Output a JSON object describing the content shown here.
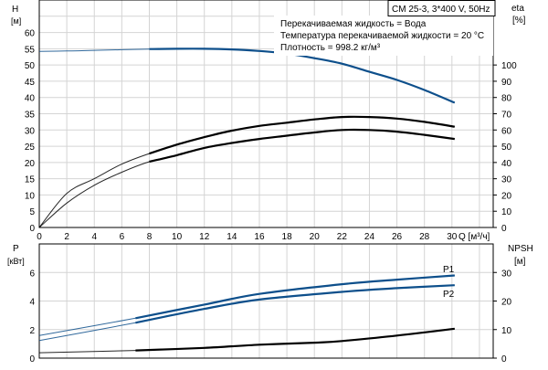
{
  "chart_data": [
    {
      "type": "line",
      "title_box": "CM 25-3, 3*400 V, 50Hz",
      "info_lines": [
        "Перекачиваемая жидкость = Вода",
        "Температура перекачиваемой жидкости = 20 °C",
        "Плотность = 998.2 кг/м³"
      ],
      "xlabel": "Q [м³/ч]",
      "ylabel_left": {
        "name": "H",
        "unit": "[м]"
      },
      "ylabel_right": {
        "name": "eta",
        "unit": "[%]"
      },
      "xlim": [
        0,
        33
      ],
      "ylim_left": [
        0,
        70
      ],
      "ylim_right": [
        0,
        140
      ],
      "x_ticks": [
        "0",
        "2",
        "4",
        "6",
        "8",
        "10",
        "12",
        "14",
        "16",
        "18",
        "20",
        "22",
        "24",
        "26",
        "28",
        "30"
      ],
      "y_ticks_left": [
        "0",
        "5",
        "10",
        "15",
        "20",
        "25",
        "30",
        "35",
        "40",
        "45",
        "50",
        "55",
        "60"
      ],
      "y_ticks_right": [
        "0",
        "10",
        "20",
        "30",
        "40",
        "50",
        "60",
        "70",
        "80",
        "90",
        "100"
      ],
      "grid": true,
      "operating_range_start_q": 7,
      "series": [
        {
          "axis": "left",
          "color": "#0d4f8b",
          "x": [
            0,
            2,
            4,
            6,
            8,
            10,
            12,
            14,
            16,
            18,
            20,
            22,
            24,
            26,
            28,
            30.2
          ],
          "y": [
            54.2,
            54.3,
            54.5,
            54.7,
            54.9,
            55.0,
            55.0,
            54.8,
            54.3,
            53.5,
            52.1,
            50.4,
            47.9,
            45.4,
            42.3,
            38.4
          ]
        },
        {
          "axis": "right",
          "color": "#000000",
          "x": [
            0,
            2,
            4,
            6,
            8,
            10,
            12,
            14,
            16,
            18,
            20,
            22,
            24,
            26,
            28,
            30.2
          ],
          "y": [
            0,
            21,
            30,
            39,
            45.5,
            51,
            55.6,
            59.6,
            62.5,
            64.5,
            66.5,
            68,
            68,
            67,
            65,
            62
          ]
        },
        {
          "axis": "right",
          "color": "#000000",
          "x": [
            0,
            2,
            4,
            6,
            8,
            10,
            12,
            14,
            16,
            18,
            20,
            22,
            24,
            26,
            28,
            30.2
          ],
          "y": [
            0,
            15,
            26,
            34,
            40.5,
            44.5,
            49,
            52,
            54.5,
            56.5,
            58.5,
            60,
            60,
            59,
            57,
            54.5
          ]
        }
      ]
    },
    {
      "type": "line",
      "xlim": [
        0,
        33
      ],
      "ylabel_left": {
        "name": "P",
        "unit": "[кВт]"
      },
      "ylabel_right": {
        "name": "NPSH",
        "unit": "[м]"
      },
      "ylim_left": [
        0,
        8
      ],
      "ylim_right": [
        0,
        40
      ],
      "y_ticks_left": [
        "0",
        "2",
        "4",
        "6"
      ],
      "y_ticks_right": [
        "0",
        "10",
        "20",
        "30"
      ],
      "grid": true,
      "operating_range_start_q": 7,
      "series": [
        {
          "name": "P1",
          "axis": "left",
          "color": "#0d4f8b",
          "x": [
            0,
            7,
            12,
            16,
            22,
            26,
            30.2
          ],
          "y": [
            1.58,
            2.8,
            3.75,
            4.5,
            5.18,
            5.5,
            5.79
          ]
        },
        {
          "name": "P2",
          "axis": "left",
          "color": "#0d4f8b",
          "x": [
            0,
            7,
            12,
            16,
            22,
            26,
            30.2
          ],
          "y": [
            1.23,
            2.48,
            3.45,
            4.1,
            4.64,
            4.9,
            5.11
          ]
        },
        {
          "axis": "right",
          "color": "#000000",
          "x": [
            0,
            7,
            12,
            16,
            20,
            22,
            26,
            30.2
          ],
          "y": [
            1.9,
            2.7,
            3.6,
            4.7,
            5.4,
            6.0,
            7.9,
            10.3
          ]
        }
      ]
    }
  ]
}
